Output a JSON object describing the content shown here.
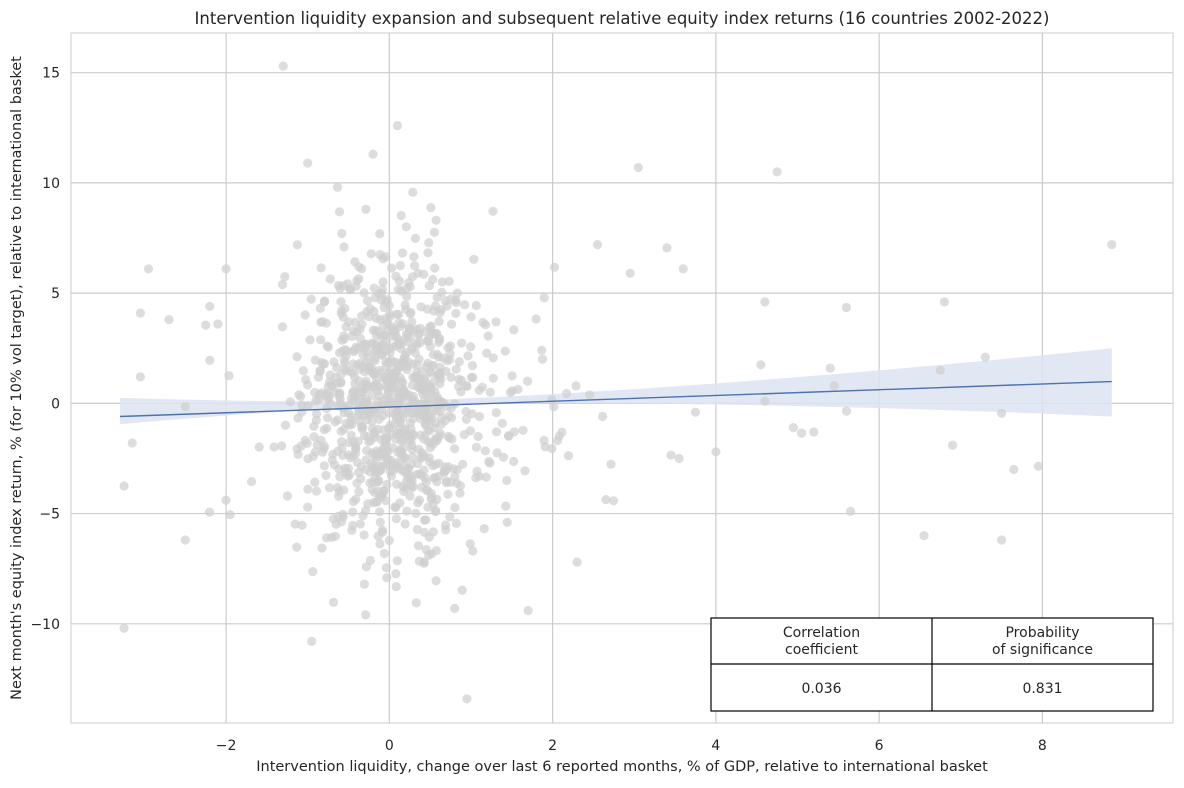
{
  "chart_data": {
    "type": "scatter",
    "title": "Intervention liquidity expansion and subsequent relative equity index returns (16 countries 2002-2022)",
    "xlabel": "Intervention liquidity, change over last 6 reported months, % of GDP, relative to international basket",
    "ylabel": "Next month's equity index return, % (for 10% vol target), relative to international basket",
    "xlim": [
      -3.9,
      9.6
    ],
    "ylim": [
      -14.5,
      16.8
    ],
    "x_ticks": [
      -2,
      0,
      2,
      4,
      6,
      8
    ],
    "y_ticks": [
      -10,
      -5,
      0,
      5,
      10,
      15
    ],
    "x_tick_labels": [
      "−2",
      "0",
      "2",
      "4",
      "6",
      "8"
    ],
    "y_tick_labels": [
      "−10",
      "−5",
      "0",
      "5",
      "10",
      "15"
    ],
    "grid": true,
    "colors": {
      "points": "#cfcfcf",
      "regression_line": "#4c72b0",
      "confidence_band": "#dde4f1",
      "grid": "#cccccc"
    },
    "regression": {
      "x_range": [
        -3.3,
        8.85
      ],
      "intercept": 0.0,
      "slope": 0.105,
      "ci_low_end_left": [
        -0.95,
        0.25
      ],
      "ci_band_right": [
        -0.6,
        2.5
      ]
    },
    "points_note_cluster": {
      "n": 1000,
      "center_x": 0.0,
      "sd_x": 0.5,
      "center_y": 0.0,
      "sd_y": 3.2
    },
    "outliers": [
      [
        -1.3,
        15.3
      ],
      [
        0.1,
        12.6
      ],
      [
        -0.2,
        11.3
      ],
      [
        -1.0,
        10.9
      ],
      [
        3.05,
        10.7
      ],
      [
        4.75,
        10.5
      ],
      [
        8.85,
        7.2
      ],
      [
        -2.95,
        6.1
      ],
      [
        -2.0,
        6.1
      ],
      [
        3.4,
        7.05
      ],
      [
        2.55,
        7.2
      ],
      [
        3.6,
        6.1
      ],
      [
        2.95,
        5.9
      ],
      [
        -2.1,
        3.6
      ],
      [
        -3.05,
        4.1
      ],
      [
        -2.7,
        3.8
      ],
      [
        -2.2,
        4.4
      ],
      [
        -2.25,
        3.55
      ],
      [
        4.6,
        4.6
      ],
      [
        5.6,
        4.35
      ],
      [
        6.8,
        4.6
      ],
      [
        7.3,
        2.1
      ],
      [
        4.55,
        1.75
      ],
      [
        5.4,
        1.6
      ],
      [
        6.75,
        1.5
      ],
      [
        5.45,
        0.8
      ],
      [
        4.6,
        0.1
      ],
      [
        3.75,
        -0.4
      ],
      [
        5.6,
        -0.35
      ],
      [
        7.5,
        -0.45
      ],
      [
        4.95,
        -1.1
      ],
      [
        5.05,
        -1.35
      ],
      [
        5.2,
        -1.3
      ],
      [
        6.9,
        -1.9
      ],
      [
        4.0,
        -2.2
      ],
      [
        3.45,
        -2.35
      ],
      [
        3.55,
        -2.5
      ],
      [
        7.65,
        -3.0
      ],
      [
        7.95,
        -2.85
      ],
      [
        5.65,
        -4.9
      ],
      [
        6.55,
        -6.0
      ],
      [
        7.5,
        -6.2
      ],
      [
        -3.25,
        -3.75
      ],
      [
        -3.25,
        -10.2
      ],
      [
        -2.5,
        -6.2
      ],
      [
        -2.0,
        -4.4
      ],
      [
        -1.95,
        -5.05
      ],
      [
        -0.95,
        -10.8
      ],
      [
        0.95,
        -13.4
      ],
      [
        1.7,
        -9.4
      ],
      [
        0.8,
        -9.3
      ],
      [
        2.3,
        -7.2
      ],
      [
        -3.15,
        -1.8
      ],
      [
        -2.5,
        -0.15
      ],
      [
        -3.05,
        1.2
      ],
      [
        -2.2,
        1.95
      ]
    ],
    "stats_table": {
      "headers": [
        "Correlation\ncoefficient",
        "Probability\nof significance"
      ],
      "values": [
        "0.036",
        "0.831"
      ]
    }
  }
}
